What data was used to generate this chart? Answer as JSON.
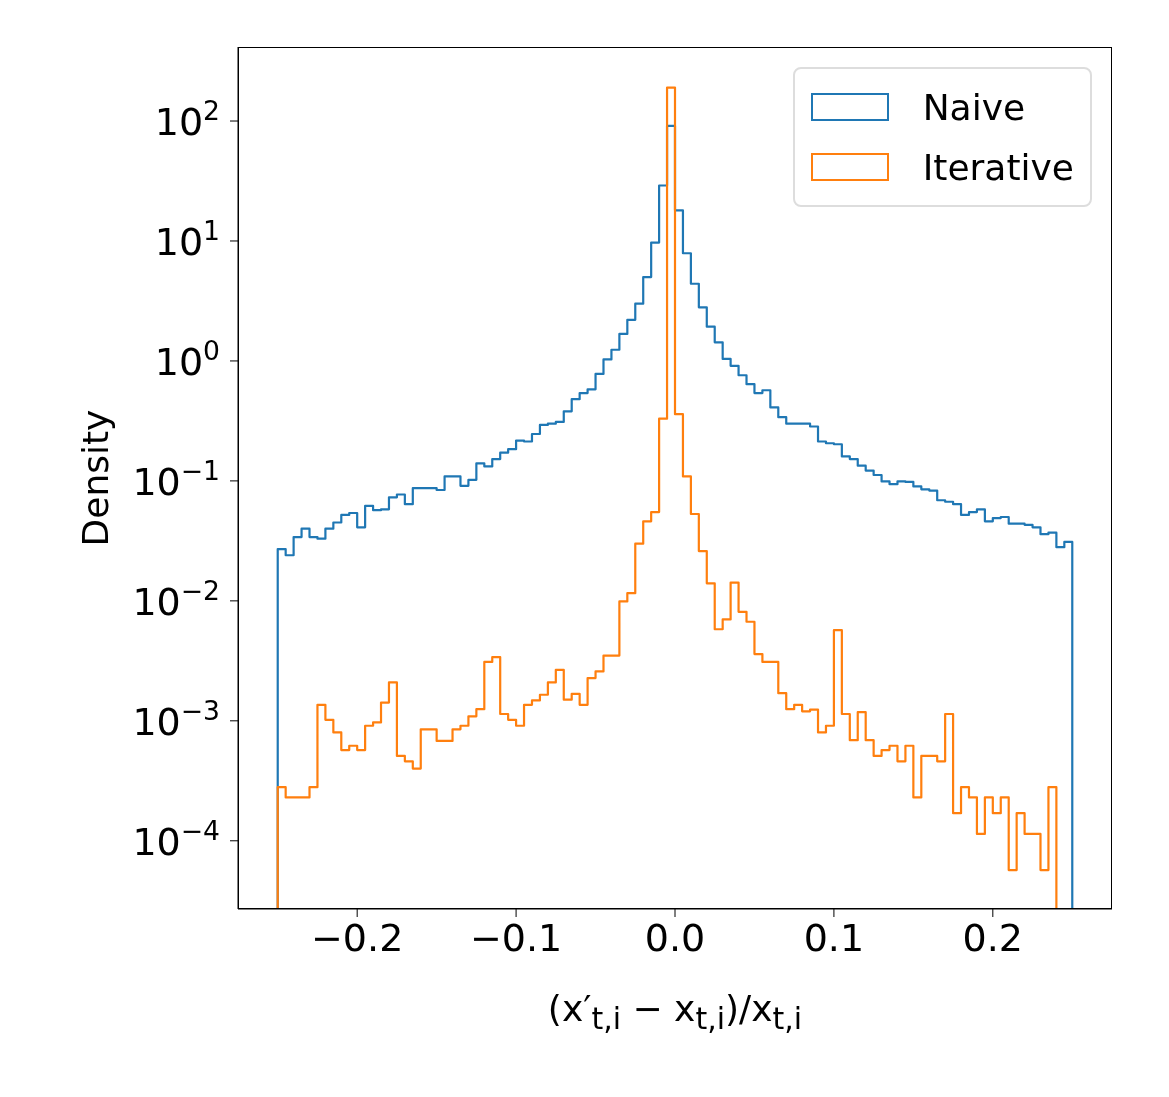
{
  "chart_data": {
    "type": "histogram",
    "xlabel": "(x′$_{t,i}$ − x$_{t,i}$)/x$_{t,i}$",
    "ylabel": "Density",
    "bins": [
      -0.25,
      -0.245,
      -0.24,
      -0.235,
      -0.23,
      -0.225,
      -0.22,
      -0.215,
      -0.21,
      -0.205,
      -0.2,
      -0.195,
      -0.19,
      -0.185,
      -0.18,
      -0.175,
      -0.17,
      -0.165,
      -0.16,
      -0.155,
      -0.15,
      -0.145,
      -0.14,
      -0.135,
      -0.13,
      -0.125,
      -0.12,
      -0.115,
      -0.11,
      -0.105,
      -0.1,
      -0.095,
      -0.09,
      -0.085,
      -0.08,
      -0.075,
      -0.07,
      -0.065,
      -0.06,
      -0.055,
      -0.05,
      -0.045,
      -0.04,
      -0.035,
      -0.03,
      -0.025,
      -0.02,
      -0.015,
      -0.01,
      -0.005,
      0,
      0.005,
      0.01,
      0.015,
      0.02,
      0.025,
      0.03,
      0.035,
      0.04,
      0.045,
      0.05,
      0.055,
      0.06,
      0.065,
      0.07,
      0.075,
      0.08,
      0.085,
      0.09,
      0.095,
      0.1,
      0.105,
      0.11,
      0.115,
      0.12,
      0.125,
      0.13,
      0.135,
      0.14,
      0.145,
      0.15,
      0.155,
      0.16,
      0.165,
      0.17,
      0.175,
      0.18,
      0.185,
      0.19,
      0.195,
      0.2,
      0.205,
      0.21,
      0.215,
      0.22,
      0.225,
      0.23,
      0.235,
      0.24,
      0.245,
      0.25
    ],
    "series": [
      {
        "name": "Naive",
        "color": "#1f77b4",
        "values": [
          0.027,
          0.024,
          0.034,
          0.04,
          0.034,
          0.033,
          0.04,
          0.045,
          0.052,
          0.054,
          0.041,
          0.062,
          0.057,
          0.058,
          0.073,
          0.077,
          0.064,
          0.087,
          0.087,
          0.087,
          0.084,
          0.109,
          0.109,
          0.091,
          0.102,
          0.14,
          0.132,
          0.152,
          0.172,
          0.184,
          0.217,
          0.213,
          0.246,
          0.293,
          0.3,
          0.31,
          0.38,
          0.48,
          0.54,
          0.58,
          0.78,
          1.03,
          1.24,
          1.68,
          2.2,
          3.0,
          5.0,
          9.7,
          29,
          91,
          18,
          7.9,
          4.4,
          2.8,
          1.93,
          1.43,
          1.04,
          0.91,
          0.76,
          0.64,
          0.54,
          0.57,
          0.41,
          0.34,
          0.3,
          0.3,
          0.3,
          0.284,
          0.213,
          0.206,
          0.202,
          0.16,
          0.152,
          0.134,
          0.122,
          0.112,
          0.099,
          0.094,
          0.099,
          0.098,
          0.09,
          0.085,
          0.083,
          0.069,
          0.067,
          0.064,
          0.052,
          0.055,
          0.058,
          0.046,
          0.049,
          0.05,
          0.044,
          0.044,
          0.043,
          0.041,
          0.036,
          0.037,
          0.028,
          0.031
        ]
      },
      {
        "name": "Iterative",
        "color": "#ff7f0e",
        "values": [
          0.00028,
          0.00023,
          0.00023,
          0.00023,
          0.00028,
          0.00136,
          0.00102,
          0.0008,
          0.00057,
          0.00062,
          0.00057,
          0.00091,
          0.00097,
          0.00142,
          0.00209,
          0.00051,
          0.00046,
          0.0004,
          0.00085,
          0.00085,
          0.00068,
          0.00068,
          0.00085,
          0.00091,
          0.00109,
          0.00125,
          0.0031,
          0.0034,
          0.00114,
          0.00102,
          0.00091,
          0.00136,
          0.00148,
          0.00165,
          0.00209,
          0.00266,
          0.0015,
          0.00168,
          0.00136,
          0.00227,
          0.00258,
          0.0035,
          0.0035,
          0.0099,
          0.0116,
          0.03,
          0.046,
          0.055,
          0.33,
          190,
          0.36,
          0.109,
          0.053,
          0.026,
          0.014,
          0.0058,
          0.007,
          0.0142,
          0.0081,
          0.0067,
          0.0036,
          0.0031,
          0.0031,
          0.0017,
          0.00125,
          0.00136,
          0.0012,
          0.00124,
          0.0008,
          0.00091,
          0.0057,
          0.00114,
          0.00069,
          0.00118,
          0.00069,
          0.00051,
          0.00057,
          0.00062,
          0.00046,
          0.00062,
          0.00023,
          0.00051,
          0.00051,
          0.00046,
          0.00114,
          0.00017,
          0.00028,
          0.00023,
          0.000114,
          0.00023,
          0.00017,
          0.00023,
          5.7e-05,
          0.00017,
          0.000114,
          0.000114,
          5.7e-05,
          0.00028,
          null,
          null
        ]
      }
    ],
    "log": "y",
    "xlim": [
      -0.275,
      0.275
    ],
    "xticks": [
      {
        "value": -0.2,
        "label": "−0.2"
      },
      {
        "value": -0.1,
        "label": "−0.1"
      },
      {
        "value": 0,
        "label": "0.0"
      },
      {
        "value": 0.1,
        "label": "0.1"
      },
      {
        "value": 0.2,
        "label": "0.2"
      }
    ],
    "ylim": [
      2.7e-05,
      414
    ],
    "yticks": [
      {
        "value": 0.0001,
        "label": "10$^{−4}$"
      },
      {
        "value": 0.001,
        "label": "10$^{−3}$"
      },
      {
        "value": 0.01,
        "label": "10$^{−2}$"
      },
      {
        "value": 0.1,
        "label": "10$^{−1}$"
      },
      {
        "value": 1,
        "label": "10$^{0}$"
      },
      {
        "value": 10,
        "label": "10$^{1}$"
      },
      {
        "value": 100,
        "label": "10$^{2}$"
      }
    ],
    "legend": "top right",
    "grid": false
  }
}
